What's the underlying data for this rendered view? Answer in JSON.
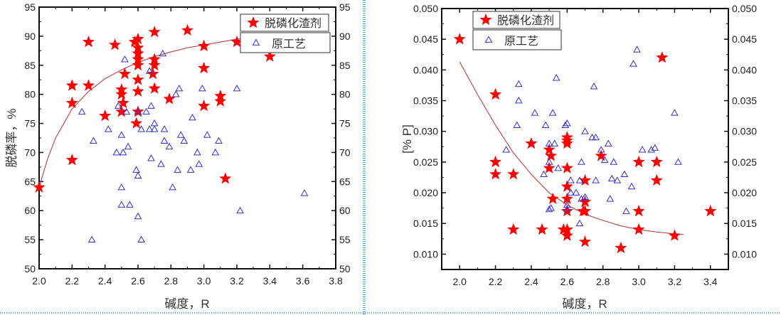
{
  "colors": {
    "star": "#ff0000",
    "triangle": "#3333cc",
    "fit": "#b03030",
    "separator": "#4aa3df"
  },
  "chart_data": [
    {
      "type": "scatter",
      "xlabel": "碱度，R",
      "ylabel": "脱磷率，%",
      "xlim": [
        2.0,
        3.8
      ],
      "ylim": [
        50,
        95
      ],
      "xticks": [
        "2.0",
        "2.2",
        "2.4",
        "2.6",
        "2.8",
        "3.0",
        "3.2",
        "3.4",
        "3.6",
        "3.8"
      ],
      "yticks": [
        "50",
        "55",
        "60",
        "65",
        "70",
        "75",
        "80",
        "85",
        "90",
        "95"
      ],
      "legend_position": "top-right",
      "series": [
        {
          "name": "脱磷化渣剂",
          "marker": "star",
          "points": [
            [
              2.0,
              64
            ],
            [
              2.2,
              81.5
            ],
            [
              2.2,
              78.5
            ],
            [
              2.2,
              68.7
            ],
            [
              2.3,
              89
            ],
            [
              2.3,
              81.5
            ],
            [
              2.4,
              76.3
            ],
            [
              2.46,
              88.5
            ],
            [
              2.5,
              80.8
            ],
            [
              2.5,
              80
            ],
            [
              2.5,
              77
            ],
            [
              2.51,
              78.5
            ],
            [
              2.52,
              83.5
            ],
            [
              2.58,
              89
            ],
            [
              2.6,
              89.5
            ],
            [
              2.6,
              88
            ],
            [
              2.6,
              87
            ],
            [
              2.6,
              86
            ],
            [
              2.6,
              85
            ],
            [
              2.6,
              82.5
            ],
            [
              2.6,
              80.5
            ],
            [
              2.6,
              77
            ],
            [
              2.59,
              75
            ],
            [
              2.7,
              90.7
            ],
            [
              2.7,
              86
            ],
            [
              2.7,
              85
            ],
            [
              2.69,
              83.5
            ],
            [
              2.7,
              81
            ],
            [
              2.79,
              79.2
            ],
            [
              2.9,
              91
            ],
            [
              3.0,
              88.3
            ],
            [
              3.0,
              84.5
            ],
            [
              3.0,
              78
            ],
            [
              3.1,
              79.7
            ],
            [
              3.1,
              78.8
            ],
            [
              3.13,
              65.5
            ],
            [
              3.2,
              89
            ],
            [
              3.4,
              86.5
            ]
          ]
        },
        {
          "name": "原工艺",
          "marker": "triangle",
          "points": [
            [
              2.26,
              77
            ],
            [
              2.33,
              72
            ],
            [
              2.32,
              55
            ],
            [
              2.42,
              74
            ],
            [
              2.47,
              70
            ],
            [
              2.48,
              78
            ],
            [
              2.5,
              73
            ],
            [
              2.51,
              70
            ],
            [
              2.5,
              64
            ],
            [
              2.5,
              61
            ],
            [
              2.52,
              86
            ],
            [
              2.53,
              77
            ],
            [
              2.54,
              71
            ],
            [
              2.55,
              61
            ],
            [
              2.59,
              67
            ],
            [
              2.6,
              66
            ],
            [
              2.6,
              77
            ],
            [
              2.6,
              59
            ],
            [
              2.62,
              74
            ],
            [
              2.62,
              55
            ],
            [
              2.65,
              77
            ],
            [
              2.67,
              84
            ],
            [
              2.67,
              74
            ],
            [
              2.68,
              78
            ],
            [
              2.68,
              69
            ],
            [
              2.7,
              75
            ],
            [
              2.7,
              74
            ],
            [
              2.74,
              68
            ],
            [
              2.75,
              87
            ],
            [
              2.76,
              74
            ],
            [
              2.76,
              72
            ],
            [
              2.79,
              71
            ],
            [
              2.81,
              64
            ],
            [
              2.83,
              80
            ],
            [
              2.84,
              67
            ],
            [
              2.85,
              81
            ],
            [
              2.86,
              73
            ],
            [
              2.88,
              72
            ],
            [
              2.92,
              67
            ],
            [
              2.93,
              76
            ],
            [
              2.96,
              70
            ],
            [
              2.97,
              68
            ],
            [
              2.99,
              81
            ],
            [
              3.02,
              73
            ],
            [
              3.07,
              70
            ],
            [
              3.09,
              72
            ],
            [
              3.2,
              81
            ],
            [
              3.22,
              60
            ],
            [
              3.61,
              63
            ]
          ]
        }
      ],
      "fit_curve": [
        [
          2.0,
          64
        ],
        [
          2.05,
          68.8
        ],
        [
          2.1,
          72.5
        ],
        [
          2.2,
          77.5
        ],
        [
          2.3,
          80.5
        ],
        [
          2.4,
          82.7
        ],
        [
          2.5,
          84.2
        ],
        [
          2.6,
          85.5
        ],
        [
          2.7,
          86.5
        ],
        [
          2.8,
          87.3
        ],
        [
          2.9,
          88
        ],
        [
          3.0,
          88.5
        ],
        [
          3.1,
          89
        ],
        [
          3.2,
          89.5
        ],
        [
          3.3,
          89.8
        ]
      ]
    },
    {
      "type": "scatter",
      "xlabel": "碱度，R",
      "ylabel": "[% P]",
      "xlim": [
        1.9,
        3.5
      ],
      "ylim": [
        0.0075,
        0.05
      ],
      "xticks": [
        "2.0",
        "2.2",
        "2.4",
        "2.6",
        "2.8",
        "3.0",
        "3.2",
        "3.4"
      ],
      "yticks": [
        "0.010",
        "0.015",
        "0.020",
        "0.025",
        "0.030",
        "0.035",
        "0.040",
        "0.045",
        "0.050"
      ],
      "legend_position": "top-left",
      "series": [
        {
          "name": "脱磷化渣剂",
          "marker": "star",
          "points": [
            [
              2.0,
              0.045
            ],
            [
              2.2,
              0.036
            ],
            [
              2.2,
              0.025
            ],
            [
              2.2,
              0.023
            ],
            [
              2.3,
              0.023
            ],
            [
              2.3,
              0.014
            ],
            [
              2.4,
              0.028
            ],
            [
              2.46,
              0.014
            ],
            [
              2.5,
              0.027
            ],
            [
              2.5,
              0.024
            ],
            [
              2.51,
              0.026
            ],
            [
              2.52,
              0.019
            ],
            [
              2.58,
              0.014
            ],
            [
              2.6,
              0.029
            ],
            [
              2.6,
              0.0285
            ],
            [
              2.6,
              0.028
            ],
            [
              2.6,
              0.024
            ],
            [
              2.6,
              0.021
            ],
            [
              2.6,
              0.019
            ],
            [
              2.6,
              0.017
            ],
            [
              2.6,
              0.014
            ],
            [
              2.6,
              0.013
            ],
            [
              2.7,
              0.022
            ],
            [
              2.7,
              0.0185
            ],
            [
              2.7,
              0.017
            ],
            [
              2.69,
              0.017
            ],
            [
              2.7,
              0.012
            ],
            [
              2.79,
              0.026
            ],
            [
              2.9,
              0.011
            ],
            [
              3.0,
              0.025
            ],
            [
              3.0,
              0.017
            ],
            [
              3.0,
              0.014
            ],
            [
              3.1,
              0.025
            ],
            [
              3.1,
              0.022
            ],
            [
              3.13,
              0.042
            ],
            [
              3.2,
              0.013
            ],
            [
              3.4,
              0.017
            ]
          ]
        },
        {
          "name": "原工艺",
          "marker": "triangle",
          "points": [
            [
              2.26,
              0.027
            ],
            [
              2.32,
              0.031
            ],
            [
              2.33,
              0.035
            ],
            [
              2.33,
              0.0377
            ],
            [
              2.42,
              0.033
            ],
            [
              2.47,
              0.023
            ],
            [
              2.48,
              0.031
            ],
            [
              2.5,
              0.028
            ],
            [
              2.5,
              0.025
            ],
            [
              2.5,
              0.0173
            ],
            [
              2.51,
              0.0175
            ],
            [
              2.52,
              0.033
            ],
            [
              2.53,
              0.028
            ],
            [
              2.54,
              0.0387
            ],
            [
              2.55,
              0.024
            ],
            [
              2.59,
              0.031
            ],
            [
              2.6,
              0.0313
            ],
            [
              2.6,
              0.018
            ],
            [
              2.6,
              0.0173
            ],
            [
              2.62,
              0.022
            ],
            [
              2.62,
              0.02
            ],
            [
              2.65,
              0.02
            ],
            [
              2.67,
              0.022
            ],
            [
              2.67,
              0.015
            ],
            [
              2.68,
              0.025
            ],
            [
              2.68,
              0.019
            ],
            [
              2.7,
              0.03
            ],
            [
              2.7,
              0.0193
            ],
            [
              2.74,
              0.029
            ],
            [
              2.75,
              0.0373
            ],
            [
              2.76,
              0.029
            ],
            [
              2.76,
              0.022
            ],
            [
              2.79,
              0.027
            ],
            [
              2.81,
              0.0253
            ],
            [
              2.83,
              0.028
            ],
            [
              2.84,
              0.019
            ],
            [
              2.85,
              0.0223
            ],
            [
              2.86,
              0.025
            ],
            [
              2.88,
              0.022
            ],
            [
              2.92,
              0.023
            ],
            [
              2.93,
              0.017
            ],
            [
              2.96,
              0.021
            ],
            [
              2.97,
              0.041
            ],
            [
              2.99,
              0.0433
            ],
            [
              3.02,
              0.027
            ],
            [
              3.07,
              0.027
            ],
            [
              3.09,
              0.0273
            ],
            [
              3.2,
              0.033
            ],
            [
              3.22,
              0.025
            ]
          ]
        }
      ],
      "fit_curve": [
        [
          2.0,
          0.0413
        ],
        [
          2.1,
          0.036
        ],
        [
          2.2,
          0.031
        ],
        [
          2.3,
          0.0265
        ],
        [
          2.4,
          0.023
        ],
        [
          2.5,
          0.02
        ],
        [
          2.6,
          0.018
        ],
        [
          2.7,
          0.0165
        ],
        [
          2.8,
          0.0155
        ],
        [
          2.9,
          0.0146
        ],
        [
          3.0,
          0.014
        ],
        [
          3.1,
          0.0136
        ],
        [
          3.2,
          0.0133
        ],
        [
          3.25,
          0.0132
        ]
      ]
    }
  ]
}
